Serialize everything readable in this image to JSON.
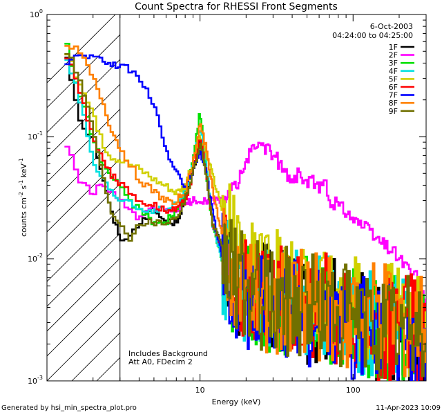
{
  "chart_data": {
    "type": "line",
    "title": "Count Spectra for RHESSI Front Segments",
    "xlabel": "Energy (keV)",
    "ylabel_main": "counts cm",
    "ylabel_sup1": "-2",
    "ylabel_mid": " s",
    "ylabel_sup2": "-1",
    "ylabel_end": " keV",
    "ylabel_sup3": "-1",
    "xscale": "log",
    "yscale": "log",
    "xlim": [
      1.0,
      300
    ],
    "ylim": [
      0.001,
      1.0
    ],
    "x_ticks": [
      {
        "value": 10,
        "label": "10"
      },
      {
        "value": 100,
        "label": "100"
      }
    ],
    "y_ticks": [
      {
        "value": 1.0,
        "base": "10",
        "exp": "0"
      },
      {
        "value": 0.1,
        "base": "10",
        "exp": "-1"
      },
      {
        "value": 0.01,
        "base": "10",
        "exp": "-2"
      },
      {
        "value": 0.001,
        "base": "10",
        "exp": "-3"
      }
    ],
    "hatched_region_upper_kev": 3.0,
    "header_date": "6-Oct-2003",
    "header_time": "04:24:00 to 04:25:00",
    "annotation_line1": "Includes Background",
    "annotation_line2": "Att A0, FDecim 2",
    "footer_left": "Generated by hsi_min_spectra_plot.pro",
    "footer_right": "11-Apr-2023 10:09",
    "series": [
      {
        "name": "1F",
        "color": "#000000",
        "anchors": [
          [
            1.3,
            0.55
          ],
          [
            1.5,
            0.25
          ],
          [
            1.7,
            0.12
          ],
          [
            2.0,
            0.1
          ],
          [
            2.3,
            0.05
          ],
          [
            2.6,
            0.025
          ],
          [
            3.0,
            0.015
          ],
          [
            3.5,
            0.015
          ],
          [
            4.0,
            0.02
          ],
          [
            5.0,
            0.025
          ],
          [
            6.0,
            0.02
          ],
          [
            7.0,
            0.02
          ],
          [
            8.0,
            0.03
          ],
          [
            9.0,
            0.05
          ],
          [
            10.0,
            0.1
          ],
          [
            11.0,
            0.05
          ],
          [
            12.0,
            0.02
          ],
          [
            14.0,
            0.012
          ],
          [
            17.0,
            0.008
          ],
          [
            20.0,
            0.006
          ],
          [
            30.0,
            0.005
          ],
          [
            50.0,
            0.004
          ],
          [
            80.0,
            0.004
          ],
          [
            150.0,
            0.003
          ],
          [
            250.0,
            0.002
          ],
          [
            300.0,
            0.002
          ]
        ]
      },
      {
        "name": "2F",
        "color": "#ff00ff",
        "anchors": [
          [
            1.3,
            0.095
          ],
          [
            1.5,
            0.06
          ],
          [
            1.7,
            0.04
          ],
          [
            2.0,
            0.035
          ],
          [
            2.3,
            0.04
          ],
          [
            2.6,
            0.035
          ],
          [
            3.0,
            0.03
          ],
          [
            3.5,
            0.025
          ],
          [
            4.0,
            0.02
          ],
          [
            4.5,
            0.025
          ],
          [
            5.0,
            0.025
          ],
          [
            6.0,
            0.025
          ],
          [
            7.0,
            0.025
          ],
          [
            8.0,
            0.028
          ],
          [
            9.0,
            0.03
          ],
          [
            10.0,
            0.03
          ],
          [
            12.0,
            0.03
          ],
          [
            14.0,
            0.03
          ],
          [
            16.0,
            0.035
          ],
          [
            18.0,
            0.045
          ],
          [
            20.0,
            0.06
          ],
          [
            22.0,
            0.08
          ],
          [
            25.0,
            0.09
          ],
          [
            28.0,
            0.075
          ],
          [
            32.0,
            0.065
          ],
          [
            36.0,
            0.05
          ],
          [
            40.0,
            0.045
          ],
          [
            45.0,
            0.05
          ],
          [
            50.0,
            0.04
          ],
          [
            55.0,
            0.045
          ],
          [
            60.0,
            0.035
          ],
          [
            65.0,
            0.045
          ],
          [
            70.0,
            0.03
          ],
          [
            80.0,
            0.028
          ],
          [
            90.0,
            0.025
          ],
          [
            100.0,
            0.022
          ],
          [
            120.0,
            0.018
          ],
          [
            150.0,
            0.014
          ],
          [
            180.0,
            0.012
          ],
          [
            220.0,
            0.009
          ],
          [
            260.0,
            0.007
          ],
          [
            300.0,
            0.004
          ]
        ]
      },
      {
        "name": "3F",
        "color": "#00e000",
        "anchors": [
          [
            1.3,
            0.75
          ],
          [
            1.5,
            0.3
          ],
          [
            1.7,
            0.2
          ],
          [
            2.0,
            0.1
          ],
          [
            2.3,
            0.06
          ],
          [
            2.6,
            0.045
          ],
          [
            3.0,
            0.04
          ],
          [
            3.5,
            0.03
          ],
          [
            4.0,
            0.025
          ],
          [
            5.0,
            0.02
          ],
          [
            6.0,
            0.02
          ],
          [
            7.0,
            0.025
          ],
          [
            8.0,
            0.035
          ],
          [
            9.0,
            0.06
          ],
          [
            10.0,
            0.16
          ],
          [
            10.5,
            0.1
          ],
          [
            11.0,
            0.05
          ],
          [
            12.0,
            0.02
          ],
          [
            14.0,
            0.01
          ],
          [
            17.0,
            0.006
          ],
          [
            20.0,
            0.005
          ],
          [
            30.0,
            0.005
          ],
          [
            50.0,
            0.005
          ],
          [
            80.0,
            0.004
          ],
          [
            150.0,
            0.003
          ],
          [
            250.0,
            0.003
          ],
          [
            300.0,
            0.003
          ]
        ]
      },
      {
        "name": "4F",
        "color": "#00e0e0",
        "anchors": [
          [
            1.3,
            0.5
          ],
          [
            1.5,
            0.3
          ],
          [
            1.7,
            0.17
          ],
          [
            2.0,
            0.06
          ],
          [
            2.3,
            0.045
          ],
          [
            2.6,
            0.035
          ],
          [
            3.0,
            0.03
          ],
          [
            3.5,
            0.03
          ],
          [
            4.0,
            0.025
          ],
          [
            5.0,
            0.025
          ],
          [
            6.0,
            0.025
          ],
          [
            7.0,
            0.028
          ],
          [
            8.0,
            0.035
          ],
          [
            9.0,
            0.06
          ],
          [
            10.0,
            0.12
          ],
          [
            11.0,
            0.06
          ],
          [
            12.0,
            0.02
          ],
          [
            14.0,
            0.01
          ],
          [
            17.0,
            0.007
          ],
          [
            20.0,
            0.006
          ],
          [
            30.0,
            0.005
          ],
          [
            50.0,
            0.005
          ],
          [
            80.0,
            0.004
          ],
          [
            150.0,
            0.003
          ],
          [
            250.0,
            0.003
          ],
          [
            300.0,
            0.002
          ]
        ]
      },
      {
        "name": "5F",
        "color": "#d0d000",
        "anchors": [
          [
            1.3,
            0.55
          ],
          [
            1.5,
            0.35
          ],
          [
            1.7,
            0.25
          ],
          [
            2.0,
            0.15
          ],
          [
            2.3,
            0.09
          ],
          [
            2.6,
            0.07
          ],
          [
            3.0,
            0.065
          ],
          [
            3.5,
            0.06
          ],
          [
            4.0,
            0.055
          ],
          [
            4.5,
            0.05
          ],
          [
            5.0,
            0.045
          ],
          [
            6.0,
            0.04
          ],
          [
            7.0,
            0.035
          ],
          [
            8.0,
            0.04
          ],
          [
            9.0,
            0.06
          ],
          [
            10.0,
            0.1
          ],
          [
            11.0,
            0.07
          ],
          [
            12.0,
            0.05
          ],
          [
            13.0,
            0.035
          ],
          [
            14.0,
            0.025
          ],
          [
            16.0,
            0.015
          ],
          [
            18.0,
            0.01
          ],
          [
            20.0,
            0.008
          ],
          [
            30.0,
            0.007
          ],
          [
            50.0,
            0.006
          ],
          [
            80.0,
            0.005
          ],
          [
            150.0,
            0.004
          ],
          [
            250.0,
            0.003
          ],
          [
            300.0,
            0.003
          ]
        ]
      },
      {
        "name": "6F",
        "color": "#ff0000",
        "anchors": [
          [
            1.3,
            0.5
          ],
          [
            1.5,
            0.35
          ],
          [
            1.7,
            0.2
          ],
          [
            2.0,
            0.1
          ],
          [
            2.3,
            0.07
          ],
          [
            2.6,
            0.05
          ],
          [
            3.0,
            0.04
          ],
          [
            3.5,
            0.035
          ],
          [
            4.0,
            0.03
          ],
          [
            5.0,
            0.028
          ],
          [
            6.0,
            0.025
          ],
          [
            7.0,
            0.025
          ],
          [
            8.0,
            0.03
          ],
          [
            9.0,
            0.05
          ],
          [
            10.0,
            0.1
          ],
          [
            11.0,
            0.05
          ],
          [
            12.0,
            0.02
          ],
          [
            14.0,
            0.012
          ],
          [
            17.0,
            0.008
          ],
          [
            20.0,
            0.006
          ],
          [
            30.0,
            0.005
          ],
          [
            50.0,
            0.005
          ],
          [
            80.0,
            0.004
          ],
          [
            150.0,
            0.003
          ],
          [
            250.0,
            0.003
          ],
          [
            300.0,
            0.002
          ]
        ]
      },
      {
        "name": "7F",
        "color": "#0000ff",
        "anchors": [
          [
            1.3,
            0.4
          ],
          [
            1.5,
            0.45
          ],
          [
            1.8,
            0.47
          ],
          [
            2.0,
            0.45
          ],
          [
            2.3,
            0.42
          ],
          [
            2.6,
            0.4
          ],
          [
            3.0,
            0.38
          ],
          [
            3.5,
            0.35
          ],
          [
            4.0,
            0.3
          ],
          [
            4.5,
            0.25
          ],
          [
            5.0,
            0.18
          ],
          [
            5.5,
            0.12
          ],
          [
            6.0,
            0.08
          ],
          [
            7.0,
            0.05
          ],
          [
            8.0,
            0.04
          ],
          [
            9.0,
            0.05
          ],
          [
            10.0,
            0.08
          ],
          [
            11.0,
            0.05
          ],
          [
            12.0,
            0.025
          ],
          [
            14.0,
            0.01
          ],
          [
            17.0,
            0.006
          ],
          [
            20.0,
            0.005
          ],
          [
            30.0,
            0.004
          ],
          [
            50.0,
            0.004
          ],
          [
            80.0,
            0.003
          ],
          [
            150.0,
            0.003
          ],
          [
            250.0,
            0.002
          ],
          [
            300.0,
            0.002
          ]
        ]
      },
      {
        "name": "8F",
        "color": "#ff8000",
        "anchors": [
          [
            1.3,
            0.6
          ],
          [
            1.5,
            0.55
          ],
          [
            1.7,
            0.45
          ],
          [
            2.0,
            0.3
          ],
          [
            2.3,
            0.2
          ],
          [
            2.6,
            0.12
          ],
          [
            3.0,
            0.08
          ],
          [
            3.5,
            0.06
          ],
          [
            4.0,
            0.045
          ],
          [
            5.0,
            0.035
          ],
          [
            6.0,
            0.03
          ],
          [
            7.0,
            0.03
          ],
          [
            8.0,
            0.035
          ],
          [
            9.0,
            0.06
          ],
          [
            10.0,
            0.13
          ],
          [
            11.0,
            0.08
          ],
          [
            12.0,
            0.04
          ],
          [
            14.0,
            0.015
          ],
          [
            17.0,
            0.008
          ],
          [
            20.0,
            0.006
          ],
          [
            30.0,
            0.005
          ],
          [
            50.0,
            0.005
          ],
          [
            80.0,
            0.004
          ],
          [
            150.0,
            0.004
          ],
          [
            250.0,
            0.003
          ],
          [
            300.0,
            0.003
          ]
        ]
      },
      {
        "name": "9F",
        "color": "#707000",
        "anchors": [
          [
            1.3,
            0.55
          ],
          [
            1.5,
            0.4
          ],
          [
            1.7,
            0.25
          ],
          [
            2.0,
            0.12
          ],
          [
            2.3,
            0.05
          ],
          [
            2.6,
            0.025
          ],
          [
            3.0,
            0.02
          ],
          [
            3.5,
            0.015
          ],
          [
            4.0,
            0.02
          ],
          [
            5.0,
            0.02
          ],
          [
            6.0,
            0.02
          ],
          [
            7.0,
            0.022
          ],
          [
            8.0,
            0.03
          ],
          [
            9.0,
            0.05
          ],
          [
            10.0,
            0.09
          ],
          [
            11.0,
            0.05
          ],
          [
            12.0,
            0.02
          ],
          [
            14.0,
            0.012
          ],
          [
            17.0,
            0.008
          ],
          [
            20.0,
            0.006
          ],
          [
            30.0,
            0.005
          ],
          [
            50.0,
            0.005
          ],
          [
            80.0,
            0.004
          ],
          [
            150.0,
            0.003
          ],
          [
            250.0,
            0.003
          ],
          [
            300.0,
            0.003
          ]
        ]
      }
    ]
  }
}
